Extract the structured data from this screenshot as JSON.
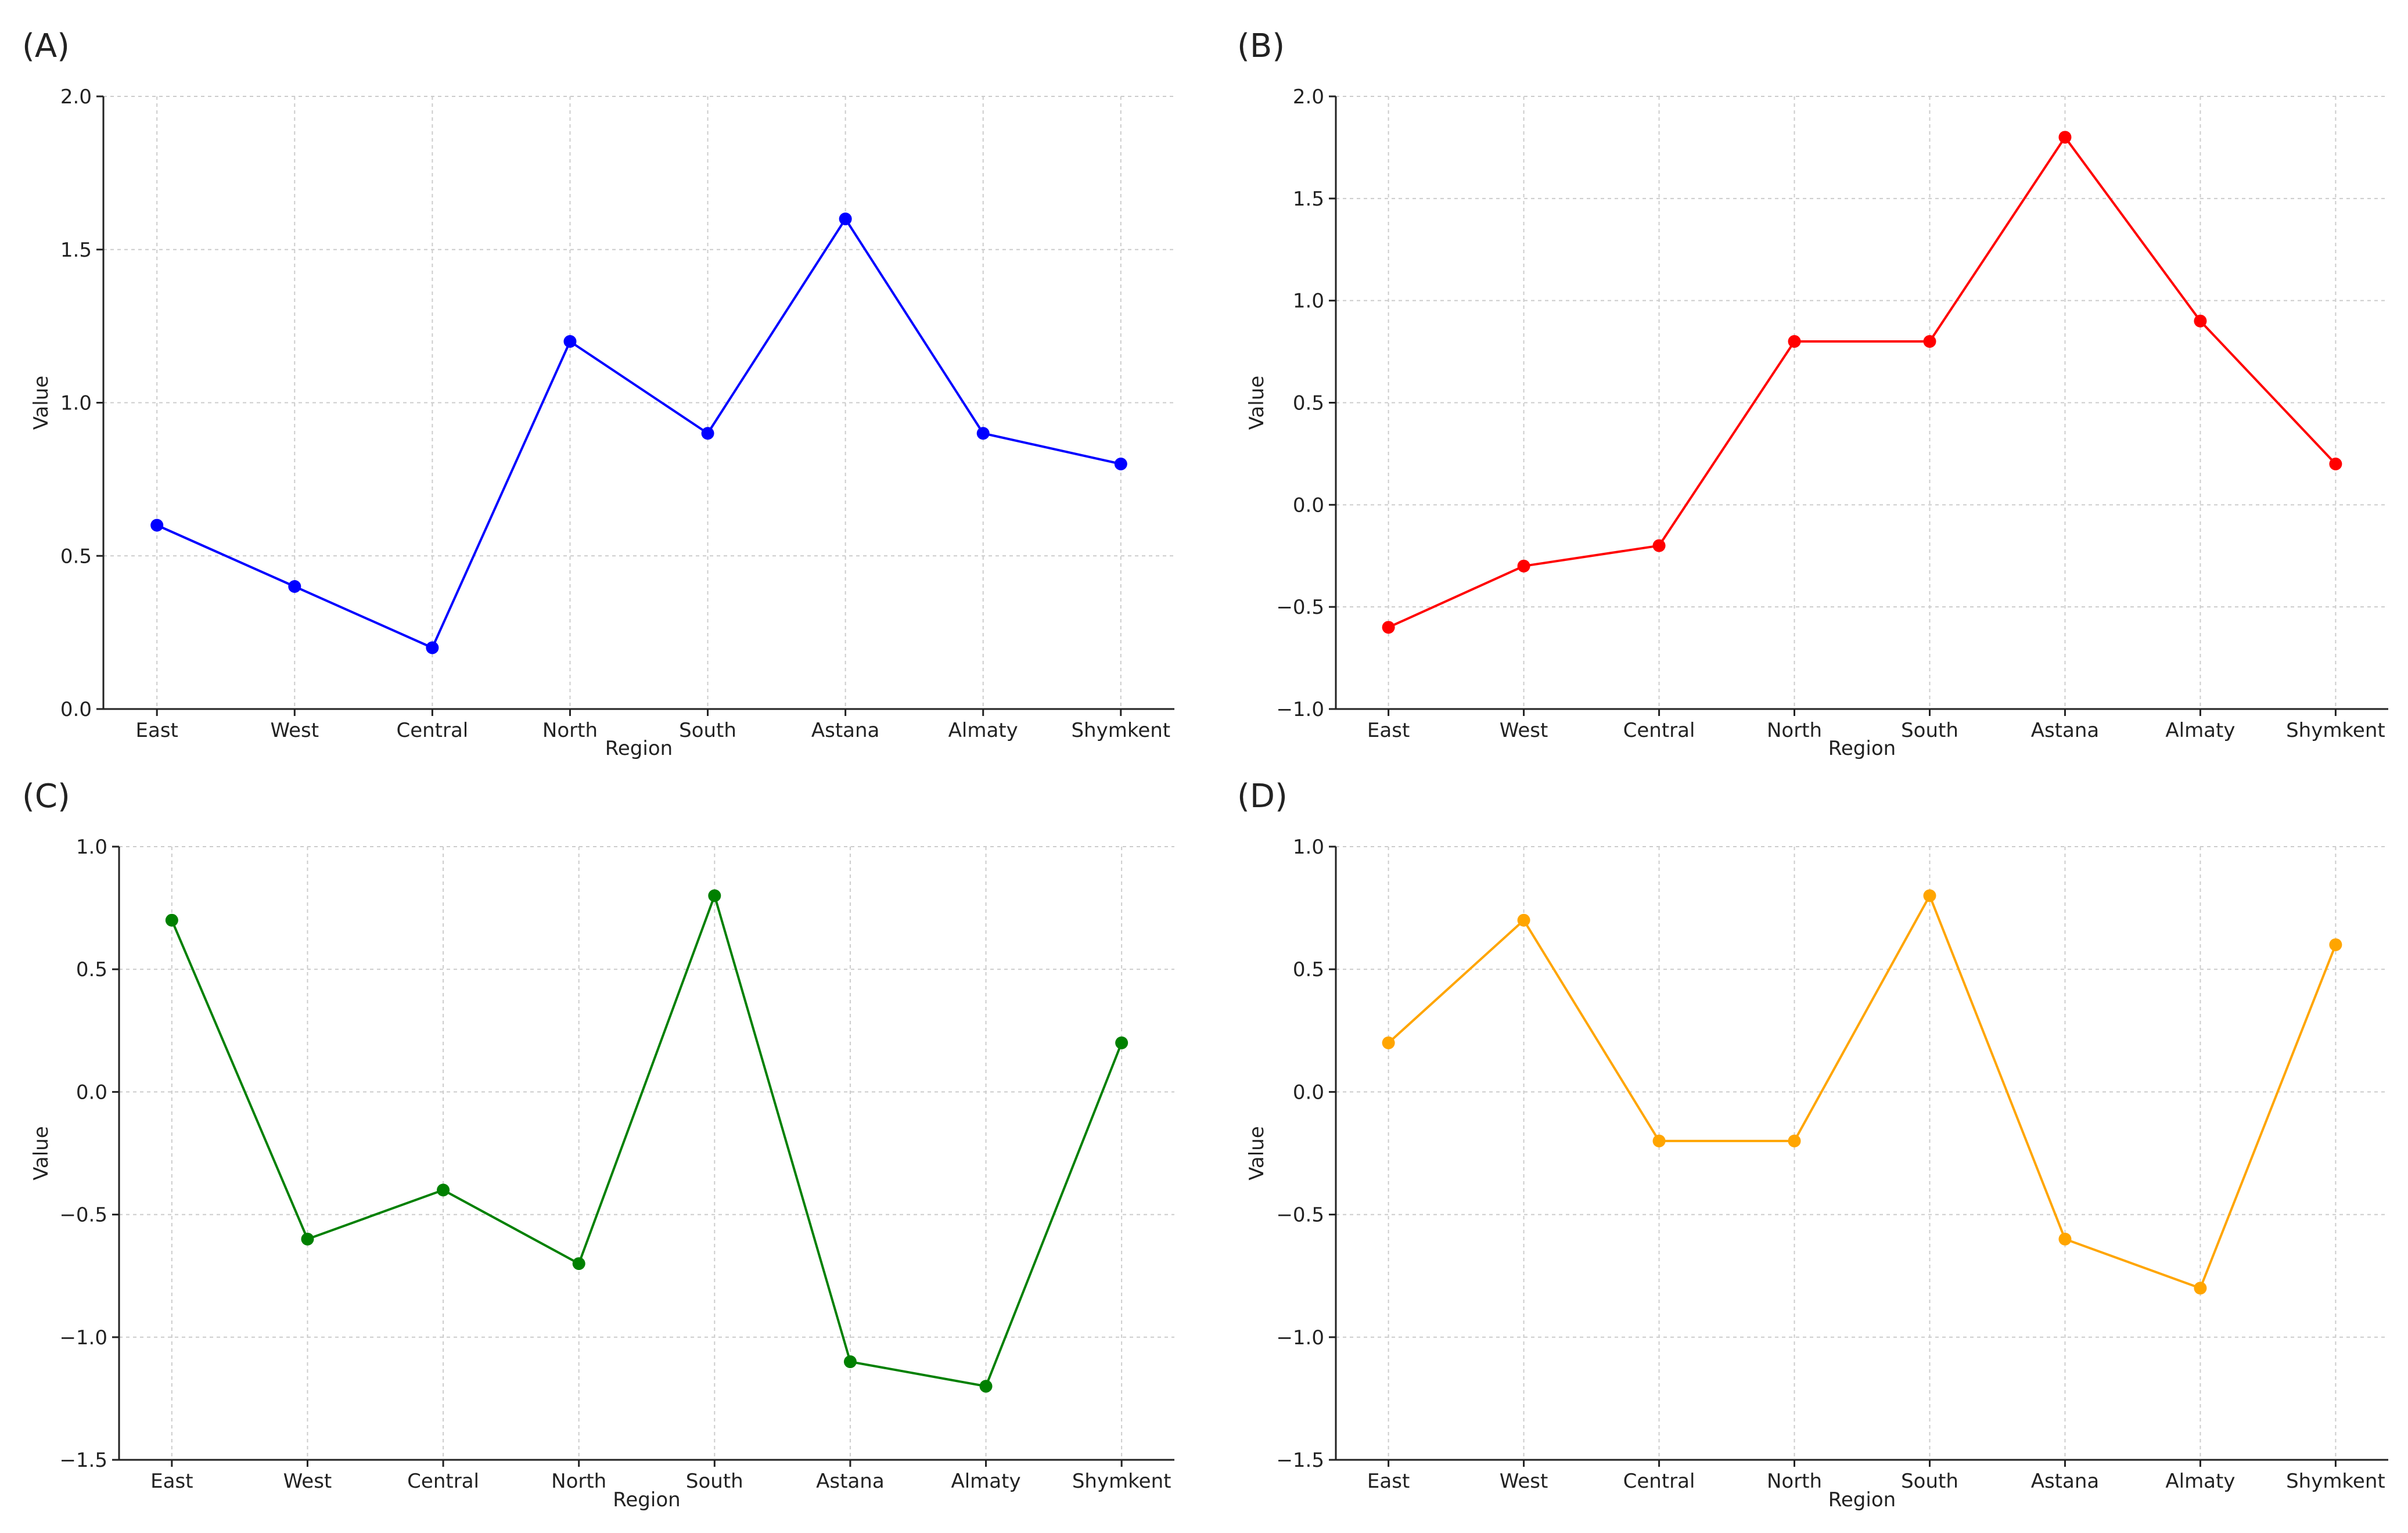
{
  "chart_data": [
    {
      "type": "line",
      "panel_label": "(A)",
      "xlabel": "Region",
      "ylabel": "Value",
      "categories": [
        "East",
        "West",
        "Central",
        "North",
        "South",
        "Astana",
        "Almaty",
        "Shymkent"
      ],
      "series": [
        {
          "values": [
            0.6,
            0.4,
            0.2,
            1.2,
            0.9,
            1.6,
            0.9,
            0.8
          ],
          "color": "#0000ff"
        }
      ],
      "ylim": [
        0.0,
        2.0
      ],
      "yticks": [
        0.0,
        0.5,
        1.0,
        1.5,
        2.0
      ],
      "ytick_labels": [
        "0.0",
        "0.5",
        "1.0",
        "1.5",
        "2.0"
      ],
      "grid": true
    },
    {
      "type": "line",
      "panel_label": "(B)",
      "xlabel": "Region",
      "ylabel": "Value",
      "categories": [
        "East",
        "West",
        "Central",
        "North",
        "South",
        "Astana",
        "Almaty",
        "Shymkent"
      ],
      "series": [
        {
          "values": [
            -0.6,
            -0.3,
            -0.2,
            0.8,
            0.8,
            1.8,
            0.9,
            0.2
          ],
          "color": "#ff0000"
        }
      ],
      "ylim": [
        -1.0,
        2.0
      ],
      "yticks": [
        -1.0,
        -0.5,
        0.0,
        0.5,
        1.0,
        1.5,
        2.0
      ],
      "ytick_labels": [
        "−1.0",
        "−0.5",
        "0.0",
        "0.5",
        "1.0",
        "1.5",
        "2.0"
      ],
      "grid": true
    },
    {
      "type": "line",
      "panel_label": "(C)",
      "xlabel": "Region",
      "ylabel": "Value",
      "categories": [
        "East",
        "West",
        "Central",
        "North",
        "South",
        "Astana",
        "Almaty",
        "Shymkent"
      ],
      "series": [
        {
          "values": [
            0.7,
            -0.6,
            -0.4,
            -0.7,
            0.8,
            -1.1,
            -1.2,
            0.2
          ],
          "color": "#008000"
        }
      ],
      "ylim": [
        -1.5,
        1.0
      ],
      "yticks": [
        -1.5,
        -1.0,
        -0.5,
        0.0,
        0.5,
        1.0
      ],
      "ytick_labels": [
        "−1.5",
        "−1.0",
        "−0.5",
        "0.0",
        "0.5",
        "1.0"
      ],
      "grid": true
    },
    {
      "type": "line",
      "panel_label": "(D)",
      "xlabel": "Region",
      "ylabel": "Value",
      "categories": [
        "East",
        "West",
        "Central",
        "North",
        "South",
        "Astana",
        "Almaty",
        "Shymkent"
      ],
      "series": [
        {
          "values": [
            0.2,
            0.7,
            -0.2,
            -0.2,
            0.8,
            -0.6,
            -0.8,
            0.6
          ],
          "color": "#ffa500"
        }
      ],
      "ylim": [
        -1.5,
        1.0
      ],
      "yticks": [
        -1.5,
        -1.0,
        -0.5,
        0.0,
        0.5,
        1.0
      ],
      "ytick_labels": [
        "−1.5",
        "−1.0",
        "−0.5",
        "0.0",
        "0.5",
        "1.0"
      ],
      "grid": true
    }
  ]
}
